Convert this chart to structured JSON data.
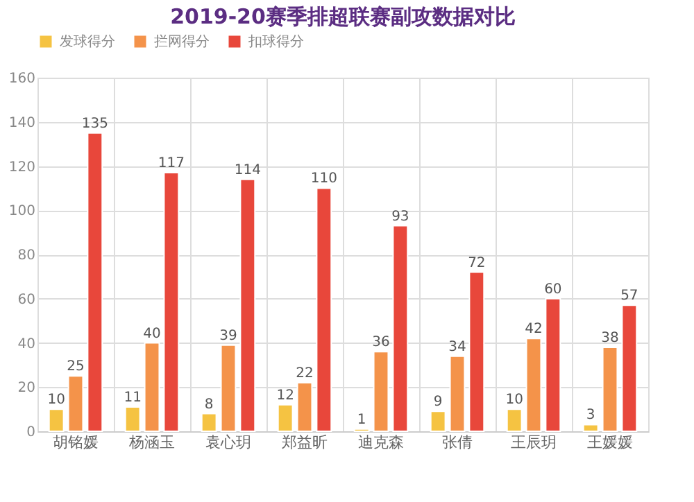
{
  "chart_data": {
    "type": "bar",
    "title": "2019-20赛季排超联赛副攻数据对比",
    "categories": [
      "胡铭媛",
      "杨涵玉",
      "袁心玥",
      "郑益昕",
      "迪克森",
      "张倩",
      "王辰玥",
      "王媛媛"
    ],
    "series": [
      {
        "name": "发球得分",
        "color": "#f5c342",
        "values": [
          10,
          11,
          8,
          12,
          1,
          9,
          10,
          3
        ]
      },
      {
        "name": "拦网得分",
        "color": "#f4934a",
        "values": [
          25,
          40,
          39,
          22,
          36,
          34,
          42,
          38
        ]
      },
      {
        "name": "扣球得分",
        "color": "#e8473b",
        "values": [
          135,
          117,
          114,
          110,
          93,
          72,
          60,
          57
        ]
      }
    ],
    "ylim": [
      0,
      160
    ],
    "yticks": [
      0,
      20,
      40,
      60,
      80,
      100,
      120,
      140,
      160
    ],
    "grid": true,
    "legend": "top",
    "data_labels": true
  }
}
